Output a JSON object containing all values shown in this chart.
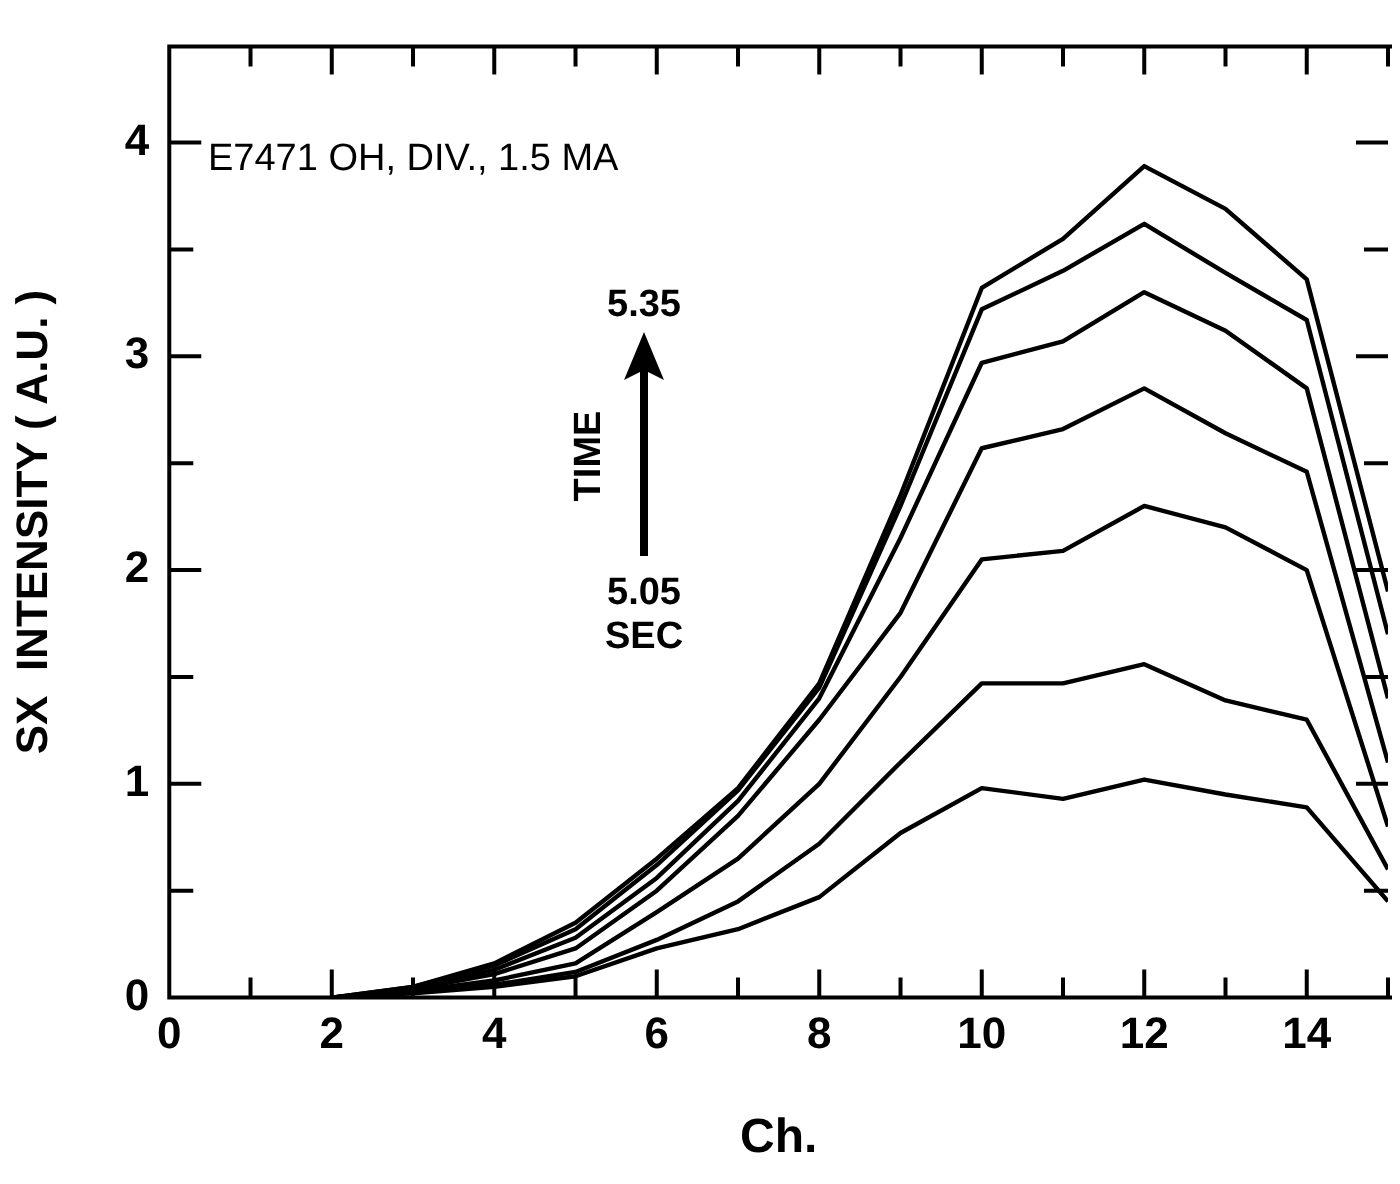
{
  "chart_data": {
    "type": "line",
    "xlabel": "Ch.",
    "ylabel": "SX  INTENSITY ( A.U. )",
    "annotations": [
      "E7471 OH, DIV., 1.5 MA",
      "5.35",
      "TIME",
      "5.05",
      "SEC"
    ],
    "x": [
      2,
      3,
      4,
      5,
      6,
      7,
      8,
      9,
      10,
      11,
      12,
      13,
      14,
      15
    ],
    "series": [
      {
        "color": "#000000",
        "values": [
          0,
          0.05,
          0.16,
          0.35,
          0.65,
          0.98,
          1.47,
          2.35,
          3.32,
          3.55,
          3.89,
          3.69,
          3.36,
          1.9
        ]
      },
      {
        "color": "#000000",
        "values": [
          0,
          0.05,
          0.15,
          0.32,
          0.62,
          0.97,
          1.45,
          2.3,
          3.22,
          3.4,
          3.62,
          3.39,
          3.17,
          1.7
        ]
      },
      {
        "color": "#000000",
        "values": [
          0,
          0.04,
          0.13,
          0.28,
          0.56,
          0.92,
          1.4,
          2.15,
          2.97,
          3.07,
          3.3,
          3.12,
          2.85,
          1.4
        ]
      },
      {
        "color": "#000000",
        "values": [
          0,
          0.04,
          0.11,
          0.23,
          0.5,
          0.85,
          1.3,
          1.8,
          2.57,
          2.66,
          2.85,
          2.64,
          2.46,
          1.1
        ]
      },
      {
        "color": "#000000",
        "values": [
          0,
          0.03,
          0.08,
          0.16,
          0.4,
          0.65,
          1.0,
          1.5,
          2.05,
          2.09,
          2.3,
          2.2,
          2.0,
          0.8
        ]
      },
      {
        "color": "#000000",
        "values": [
          0,
          0.03,
          0.06,
          0.12,
          0.27,
          0.45,
          0.72,
          1.1,
          1.47,
          1.47,
          1.56,
          1.39,
          1.3,
          0.6
        ]
      },
      {
        "color": "#000000",
        "values": [
          0,
          0.02,
          0.05,
          0.1,
          0.23,
          0.32,
          0.47,
          0.77,
          0.98,
          0.93,
          1.02,
          0.95,
          0.89,
          0.45
        ]
      }
    ],
    "xlim": [
      0,
      15
    ],
    "xticks": [
      0,
      {
        "value": 1,
        "label": null
      },
      2,
      {
        "value": 3,
        "label": null
      },
      4,
      {
        "value": 5,
        "label": null
      },
      6,
      {
        "value": 7,
        "label": null
      },
      8,
      {
        "value": 9,
        "label": null
      },
      10,
      {
        "value": 11,
        "label": null
      },
      12,
      {
        "value": 13,
        "label": null
      },
      14,
      {
        "value": 15,
        "label": null
      }
    ],
    "ylim": [
      0,
      4.45
    ],
    "yticks": [
      0,
      {
        "value": 0.5,
        "label": null
      },
      1,
      {
        "value": 1.5,
        "label": null
      },
      2,
      {
        "value": 2.5,
        "label": null
      },
      3,
      {
        "value": 3.5,
        "label": null
      },
      4
    ],
    "grid": false,
    "legend": false,
    "marker": "none",
    "line_style": "solid"
  }
}
